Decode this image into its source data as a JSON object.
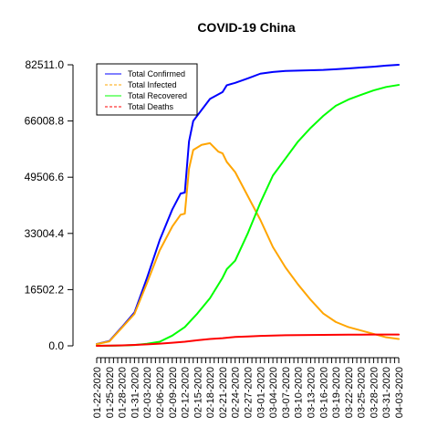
{
  "chart_data": {
    "type": "line",
    "title": "COVID-19 China",
    "xlabel": "",
    "ylabel": "",
    "ylim": [
      0,
      82511.0
    ],
    "yticks": [
      "0.0",
      "16502.2",
      "33004.4",
      "49506.6",
      "66008.8",
      "82511.0"
    ],
    "x_start": "01-22-2020",
    "x_end": "04-03-2020",
    "xtick_labels": [
      "01-22-2020",
      "01-25-2020",
      "01-28-2020",
      "01-31-2020",
      "02-03-2020",
      "02-06-2020",
      "02-09-2020",
      "02-12-2020",
      "02-15-2020",
      "02-18-2020",
      "02-21-2020",
      "02-24-2020",
      "02-27-2020",
      "03-01-2020",
      "03-04-2020",
      "03-07-2020",
      "03-10-2020",
      "03-13-2020",
      "03-16-2020",
      "03-19-2020",
      "03-22-2020",
      "03-25-2020",
      "03-28-2020",
      "03-31-2020",
      "04-03-2020"
    ],
    "grid": false,
    "legend_position": "top-left",
    "series": [
      {
        "name": "Total Confirmed",
        "color": "#0000ff",
        "line_style": "solid",
        "points": [
          [
            "01-22-2020",
            548
          ],
          [
            "01-25-2020",
            1400
          ],
          [
            "01-28-2020",
            5500
          ],
          [
            "01-31-2020",
            9800
          ],
          [
            "02-03-2020",
            20000
          ],
          [
            "02-06-2020",
            31000
          ],
          [
            "02-09-2020",
            40000
          ],
          [
            "02-11-2020",
            44700
          ],
          [
            "02-12-2020",
            45000
          ],
          [
            "02-13-2020",
            60000
          ],
          [
            "02-14-2020",
            66000
          ],
          [
            "02-18-2020",
            72500
          ],
          [
            "02-21-2020",
            74500
          ],
          [
            "02-22-2020",
            76500
          ],
          [
            "02-24-2020",
            77200
          ],
          [
            "02-27-2020",
            78500
          ],
          [
            "03-01-2020",
            79900
          ],
          [
            "03-04-2020",
            80400
          ],
          [
            "03-07-2020",
            80700
          ],
          [
            "03-10-2020",
            80800
          ],
          [
            "03-13-2020",
            80900
          ],
          [
            "03-16-2020",
            81000
          ],
          [
            "03-19-2020",
            81200
          ],
          [
            "03-22-2020",
            81450
          ],
          [
            "03-25-2020",
            81700
          ],
          [
            "03-28-2020",
            81950
          ],
          [
            "03-31-2020",
            82280
          ],
          [
            "04-03-2020",
            82511
          ]
        ]
      },
      {
        "name": "Total Infected",
        "color": "#ffa500",
        "line_style": "solid",
        "points": [
          [
            "01-22-2020",
            503
          ],
          [
            "01-25-2020",
            1300
          ],
          [
            "01-28-2020",
            5300
          ],
          [
            "01-31-2020",
            9400
          ],
          [
            "02-03-2020",
            18500
          ],
          [
            "02-06-2020",
            28000
          ],
          [
            "02-09-2020",
            35000
          ],
          [
            "02-11-2020",
            38500
          ],
          [
            "02-12-2020",
            38800
          ],
          [
            "02-13-2020",
            52000
          ],
          [
            "02-14-2020",
            57500
          ],
          [
            "02-16-2020",
            59000
          ],
          [
            "02-18-2020",
            59500
          ],
          [
            "02-20-2020",
            57000
          ],
          [
            "02-21-2020",
            56500
          ],
          [
            "02-22-2020",
            54000
          ],
          [
            "02-24-2020",
            51000
          ],
          [
            "02-27-2020",
            44000
          ],
          [
            "03-01-2020",
            37000
          ],
          [
            "03-04-2020",
            29000
          ],
          [
            "03-07-2020",
            23000
          ],
          [
            "03-10-2020",
            18000
          ],
          [
            "03-13-2020",
            13500
          ],
          [
            "03-16-2020",
            9500
          ],
          [
            "03-19-2020",
            7000
          ],
          [
            "03-22-2020",
            5500
          ],
          [
            "03-25-2020",
            4500
          ],
          [
            "03-28-2020",
            3500
          ],
          [
            "03-31-2020",
            2500
          ],
          [
            "04-03-2020",
            2000
          ]
        ]
      },
      {
        "name": "Total Recovered",
        "color": "#00ff00",
        "line_style": "solid",
        "points": [
          [
            "01-22-2020",
            28
          ],
          [
            "01-25-2020",
            40
          ],
          [
            "01-28-2020",
            100
          ],
          [
            "01-31-2020",
            250
          ],
          [
            "02-03-2020",
            600
          ],
          [
            "02-06-2020",
            1200
          ],
          [
            "02-09-2020",
            3000
          ],
          [
            "02-12-2020",
            5500
          ],
          [
            "02-15-2020",
            9500
          ],
          [
            "02-18-2020",
            14000
          ],
          [
            "02-21-2020",
            20000
          ],
          [
            "02-22-2020",
            22500
          ],
          [
            "02-24-2020",
            25000
          ],
          [
            "02-27-2020",
            33000
          ],
          [
            "03-01-2020",
            42000
          ],
          [
            "03-04-2020",
            50000
          ],
          [
            "03-07-2020",
            55000
          ],
          [
            "03-10-2020",
            60000
          ],
          [
            "03-13-2020",
            64000
          ],
          [
            "03-16-2020",
            67500
          ],
          [
            "03-19-2020",
            70500
          ],
          [
            "03-22-2020",
            72300
          ],
          [
            "03-25-2020",
            73700
          ],
          [
            "03-28-2020",
            75000
          ],
          [
            "03-31-2020",
            76000
          ],
          [
            "04-03-2020",
            76600
          ]
        ]
      },
      {
        "name": "Total Deaths",
        "color": "#ff0000",
        "line_style": "solid",
        "points": [
          [
            "01-22-2020",
            17
          ],
          [
            "01-25-2020",
            50
          ],
          [
            "01-28-2020",
            130
          ],
          [
            "01-31-2020",
            260
          ],
          [
            "02-03-2020",
            430
          ],
          [
            "02-06-2020",
            640
          ],
          [
            "02-09-2020",
            900
          ],
          [
            "02-12-2020",
            1200
          ],
          [
            "02-15-2020",
            1650
          ],
          [
            "02-18-2020",
            2000
          ],
          [
            "02-21-2020",
            2250
          ],
          [
            "02-24-2020",
            2600
          ],
          [
            "02-27-2020",
            2750
          ],
          [
            "03-01-2020",
            2900
          ],
          [
            "03-04-2020",
            3000
          ],
          [
            "03-07-2020",
            3100
          ],
          [
            "03-10-2020",
            3150
          ],
          [
            "03-13-2020",
            3180
          ],
          [
            "03-16-2020",
            3220
          ],
          [
            "03-19-2020",
            3250
          ],
          [
            "03-22-2020",
            3270
          ],
          [
            "03-25-2020",
            3280
          ],
          [
            "03-28-2020",
            3300
          ],
          [
            "03-31-2020",
            3310
          ],
          [
            "04-03-2020",
            3320
          ]
        ]
      }
    ]
  }
}
